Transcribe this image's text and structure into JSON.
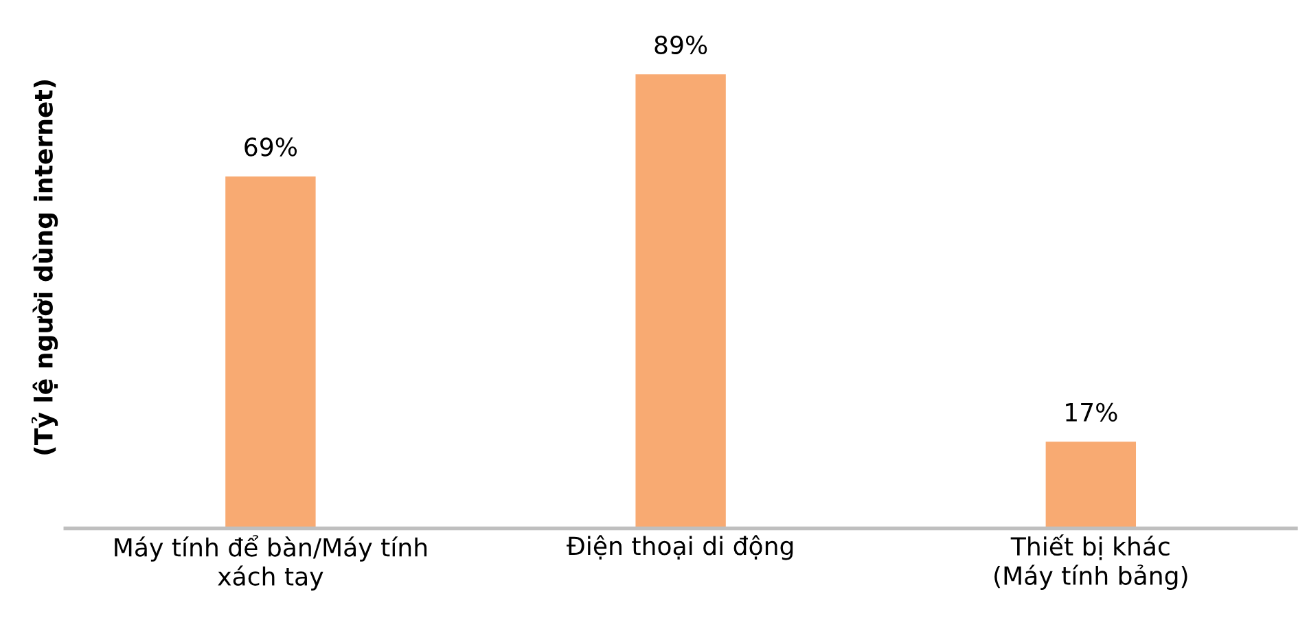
{
  "chart_data": {
    "type": "bar",
    "ylabel": "(Tỷ lệ người dùng internet)",
    "categories": [
      "Máy tính để bàn/Máy tính\nxách tay",
      "Điện thoại di động",
      "Thiết bị khác\n(Máy tính bảng)"
    ],
    "values": [
      69,
      89,
      17
    ],
    "color": "#f8aa72",
    "value_labels": [
      "69%",
      "89%",
      "17%"
    ],
    "tick_labels": "x",
    "grid": false,
    "legend": false
  }
}
